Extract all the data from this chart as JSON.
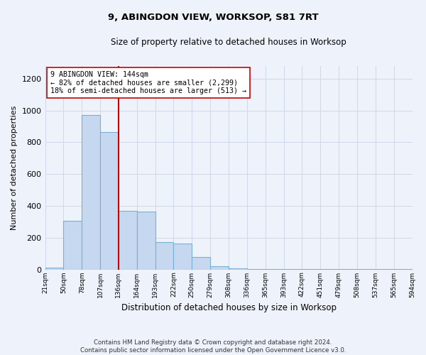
{
  "title": "9, ABINGDON VIEW, WORKSOP, S81 7RT",
  "subtitle": "Size of property relative to detached houses in Worksop",
  "xlabel": "Distribution of detached houses by size in Worksop",
  "ylabel": "Number of detached properties",
  "bar_color": "#c5d8f0",
  "bar_edge_color": "#7bafd4",
  "bar_values": [
    10,
    305,
    970,
    865,
    370,
    365,
    170,
    165,
    80,
    20,
    5,
    2,
    2,
    2,
    2,
    2,
    2,
    2,
    2,
    2
  ],
  "categories": [
    "21sqm",
    "50sqm",
    "78sqm",
    "107sqm",
    "136sqm",
    "164sqm",
    "193sqm",
    "222sqm",
    "250sqm",
    "279sqm",
    "308sqm",
    "336sqm",
    "365sqm",
    "393sqm",
    "422sqm",
    "451sqm",
    "479sqm",
    "508sqm",
    "537sqm",
    "565sqm",
    "594sqm"
  ],
  "property_label": "9 ABINGDON VIEW: 144sqm",
  "annotation_line1": "← 82% of detached houses are smaller (2,299)",
  "annotation_line2": "18% of semi-detached houses are larger (513) →",
  "line_color": "#cc0000",
  "annotation_box_color": "#ffffff",
  "annotation_box_edge_color": "#cc0000",
  "ylim": [
    0,
    1280
  ],
  "yticks": [
    0,
    200,
    400,
    600,
    800,
    1000,
    1200
  ],
  "footer": "Contains HM Land Registry data © Crown copyright and database right 2024.\nContains public sector information licensed under the Open Government Licence v3.0.",
  "background_color": "#eef2fa",
  "grid_color": "#d0d8e8"
}
